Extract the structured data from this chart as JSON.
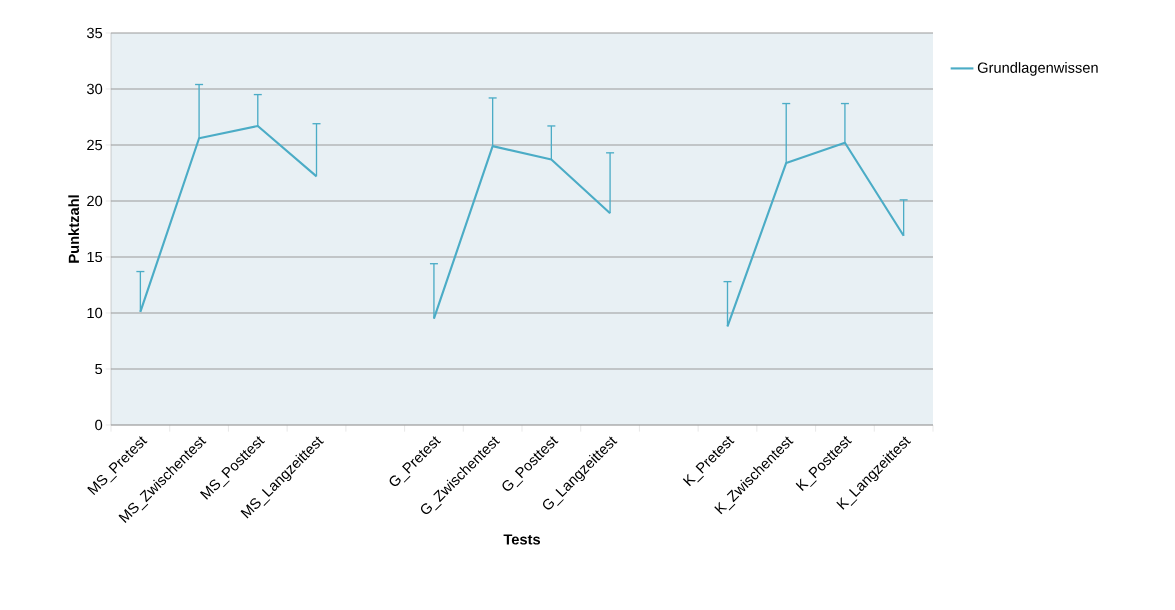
{
  "chart_data": {
    "type": "line",
    "xlabel": "Tests",
    "ylabel": "Punktzahl",
    "categories": [
      "MS_Pretest",
      "MS_Zwischentest",
      "MS_Posttest",
      "MS_Langzeittest",
      null,
      "G_Pretest",
      "G_Zwischentest",
      "G_Posttest",
      "G_Langzeittest",
      null,
      "K_Pretest",
      "K_Zwischentest",
      "K_Posttest",
      "K_Langzeittest"
    ],
    "series": [
      {
        "name": "Grundlagenwissen",
        "color": "#4bacc6",
        "values": [
          10.1,
          25.6,
          26.7,
          22.2,
          null,
          9.5,
          24.9,
          23.7,
          18.9,
          null,
          8.8,
          23.4,
          25.2,
          16.9
        ],
        "errors": [
          [
            10.1,
            13.7
          ],
          [
            25.6,
            30.4
          ],
          [
            26.7,
            29.5
          ],
          [
            22.2,
            26.9
          ],
          null,
          [
            9.5,
            14.4
          ],
          [
            24.9,
            29.2
          ],
          [
            23.7,
            26.7
          ],
          [
            18.9,
            24.3
          ],
          null,
          [
            8.8,
            12.8
          ],
          [
            23.4,
            28.7
          ],
          [
            25.2,
            28.7
          ],
          [
            16.9,
            20.1
          ]
        ]
      }
    ],
    "ylim": [
      0,
      35
    ],
    "yticks": [
      0,
      5,
      10,
      15,
      20,
      25,
      30,
      35
    ],
    "grid": "y",
    "legend": "right",
    "marker": "none",
    "line_style": "solid"
  }
}
